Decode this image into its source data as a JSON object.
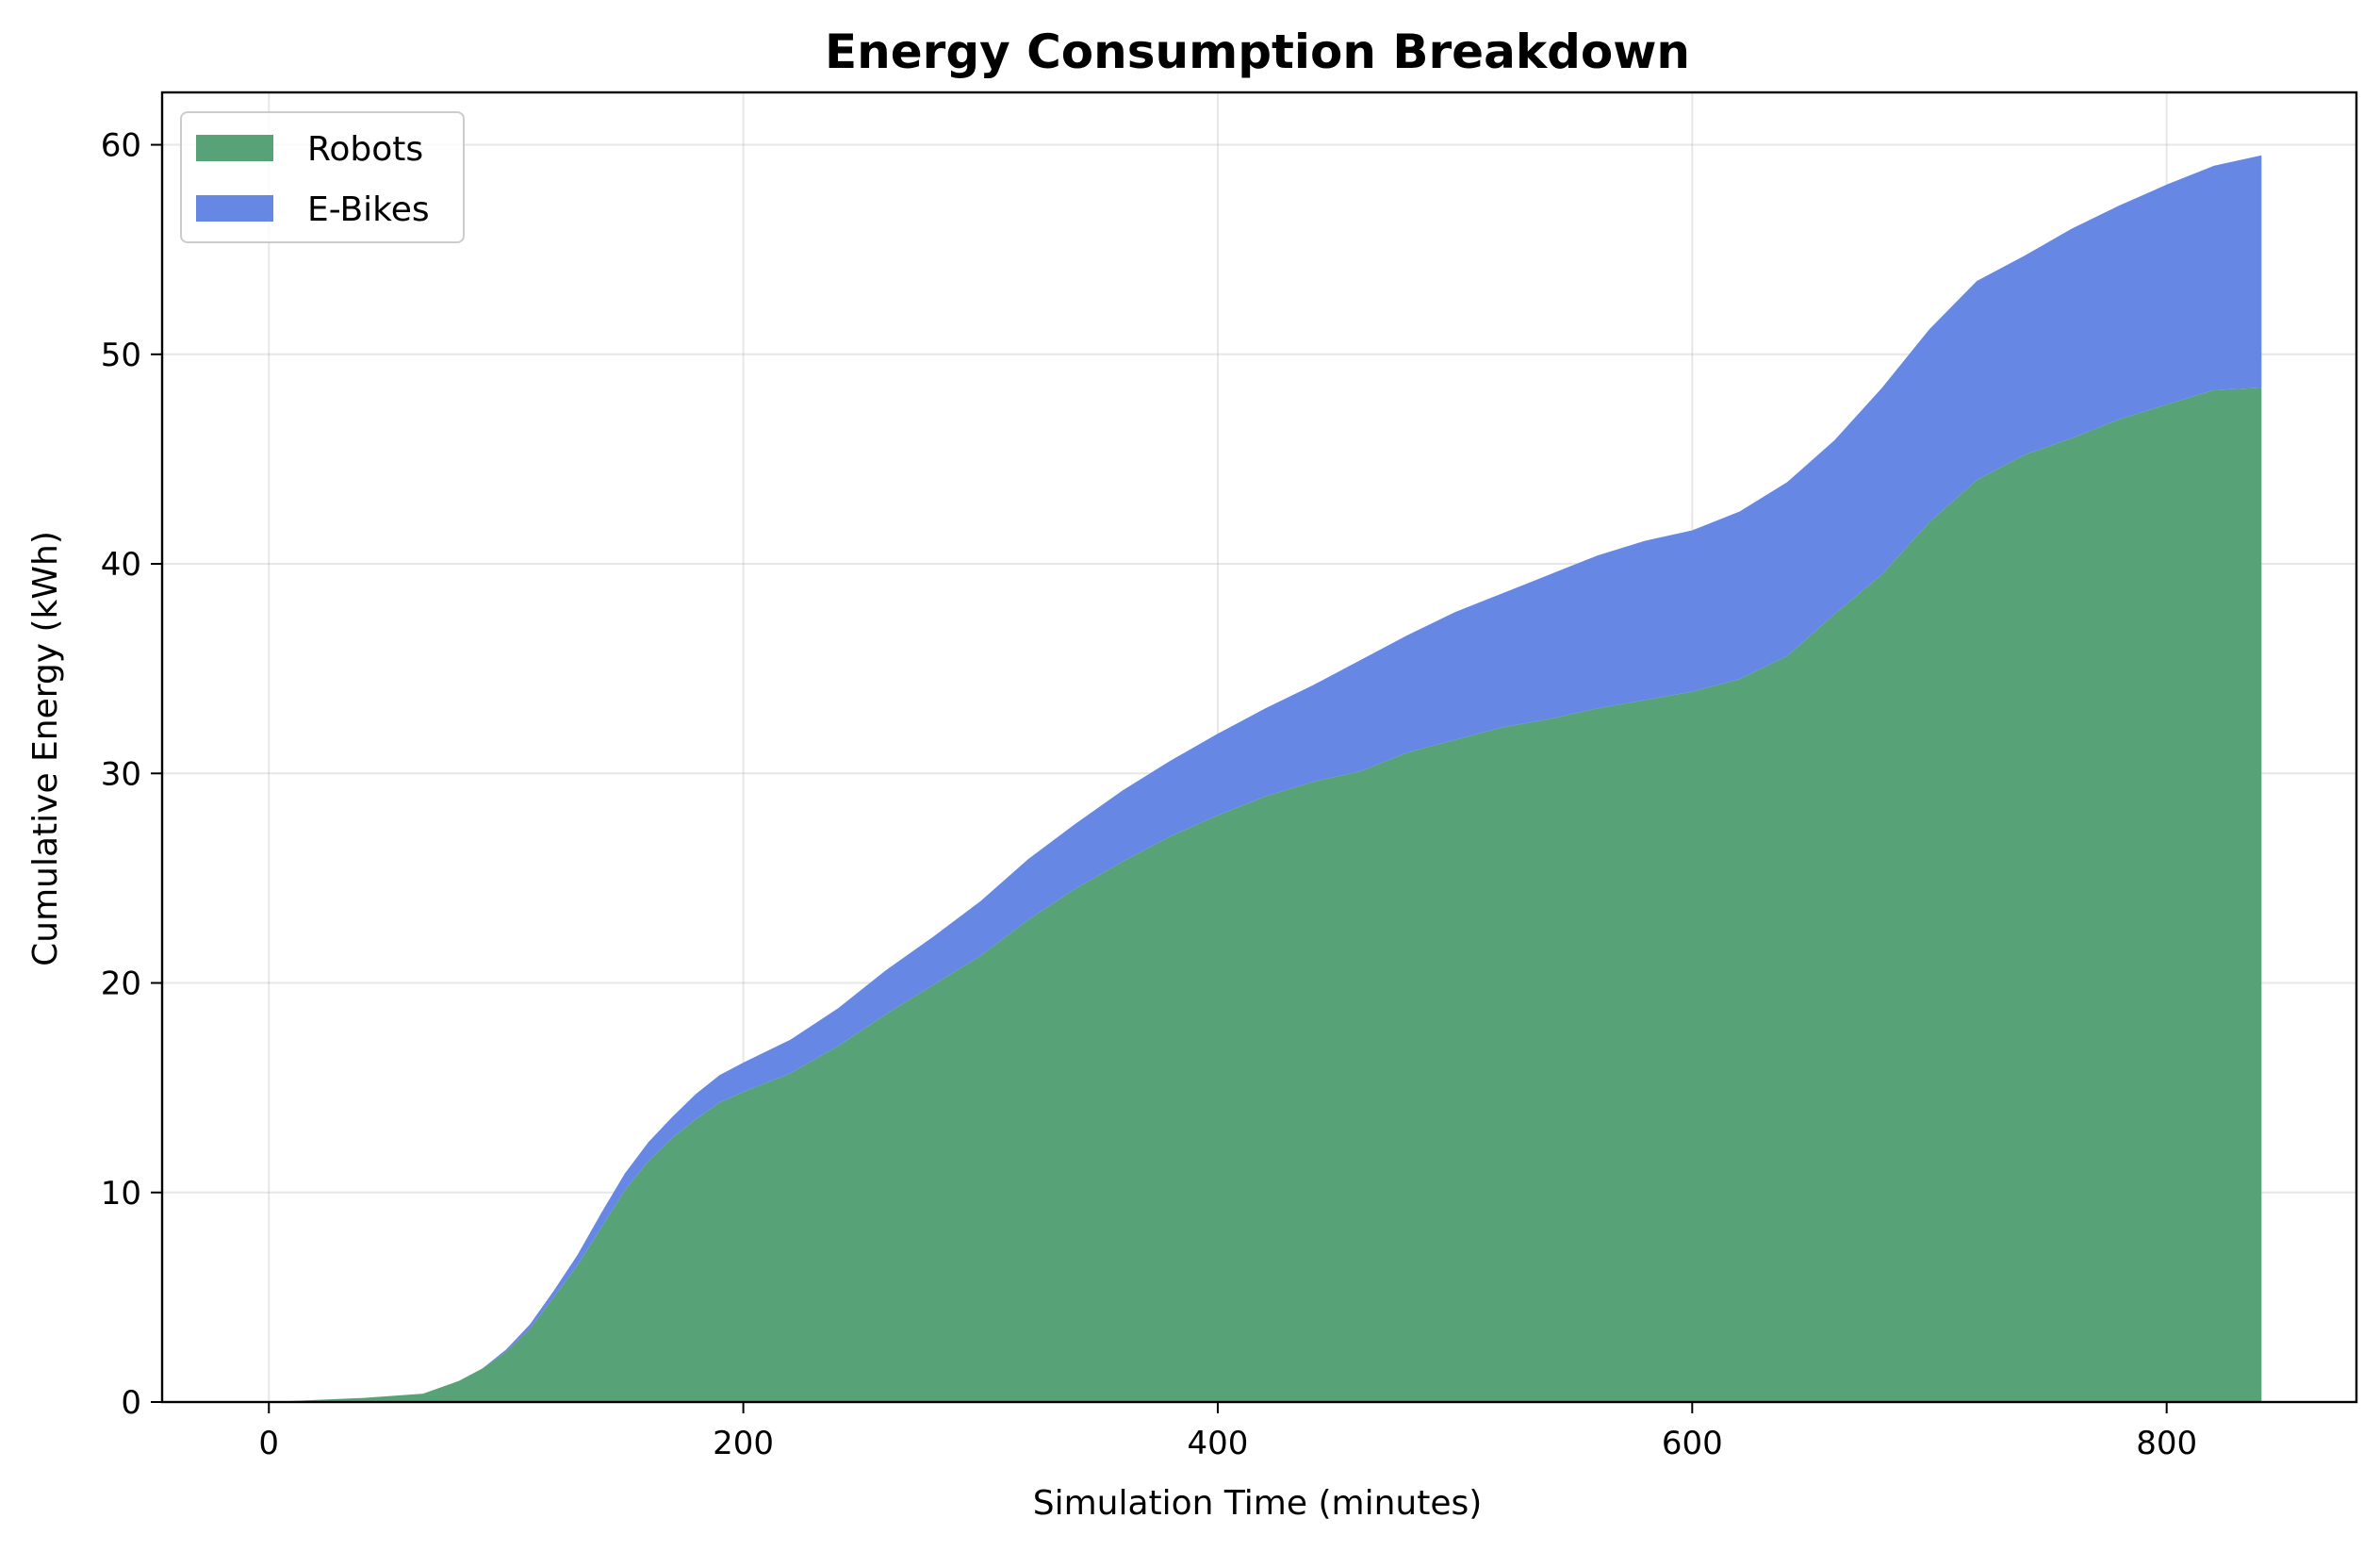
{
  "chart_data": {
    "type": "area",
    "stacked": true,
    "title": "Energy Consumption Breakdown",
    "xlabel": "Simulation Time (minutes)",
    "ylabel": "Cumulative Energy (kWh)",
    "xlim": [
      -45,
      880
    ],
    "ylim": [
      0,
      62.5
    ],
    "xticks": [
      0,
      200,
      400,
      600,
      800
    ],
    "yticks": [
      0,
      10,
      20,
      30,
      40,
      50,
      60
    ],
    "grid": true,
    "legend_position": "top-left",
    "x": [
      0,
      20,
      40,
      65,
      80,
      90,
      100,
      110,
      120,
      130,
      140,
      150,
      160,
      170,
      180,
      190,
      200,
      220,
      240,
      260,
      280,
      300,
      320,
      340,
      360,
      380,
      400,
      420,
      440,
      460,
      480,
      500,
      520,
      540,
      560,
      580,
      600,
      620,
      640,
      660,
      680,
      700,
      720,
      740,
      760,
      780,
      800,
      820,
      840
    ],
    "series": [
      {
        "name": "Robots",
        "color": "#58a278",
        "values": [
          0,
          0.1,
          0.2,
          0.4,
          1.0,
          1.6,
          2.4,
          3.5,
          5.0,
          6.5,
          8.3,
          10.1,
          11.5,
          12.6,
          13.5,
          14.3,
          14.8,
          15.7,
          17.0,
          18.5,
          19.9,
          21.3,
          23.0,
          24.5,
          25.8,
          27.0,
          28.0,
          28.9,
          29.6,
          30.1,
          31.0,
          31.6,
          32.2,
          32.6,
          33.1,
          33.5,
          33.9,
          34.5,
          35.6,
          37.6,
          39.5,
          42.0,
          44.0,
          45.2,
          46.0,
          46.9,
          47.6,
          48.3,
          48.4
        ]
      },
      {
        "name": "E-Bikes",
        "color": "#6688e4",
        "values": [
          0,
          0,
          0,
          0,
          0,
          0,
          0.1,
          0.2,
          0.3,
          0.5,
          0.7,
          0.8,
          0.9,
          1.0,
          1.2,
          1.3,
          1.4,
          1.6,
          1.8,
          2.1,
          2.3,
          2.6,
          2.9,
          3.1,
          3.4,
          3.6,
          3.9,
          4.2,
          4.6,
          5.3,
          5.6,
          6.1,
          6.4,
          6.9,
          7.3,
          7.6,
          7.7,
          8.0,
          8.3,
          8.3,
          8.9,
          9.2,
          9.5,
          9.5,
          10.0,
          10.2,
          10.5,
          10.7,
          11.1
        ]
      }
    ]
  }
}
